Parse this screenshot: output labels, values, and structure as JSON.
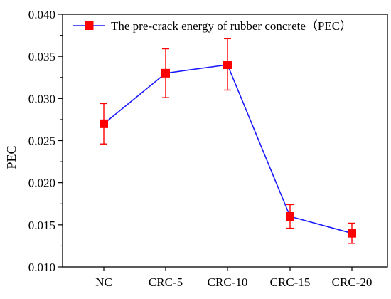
{
  "chart_data": {
    "type": "line",
    "title": "",
    "xlabel": "",
    "ylabel": "PEC",
    "categories": [
      "NC",
      "CRC-5",
      "CRC-10",
      "CRC-15",
      "CRC-20"
    ],
    "series": [
      {
        "name": "The pre-crack energy of rubber concrete（PEC）",
        "values": [
          0.027,
          0.033,
          0.034,
          0.016,
          0.014
        ],
        "error_upper": [
          0.0294,
          0.0359,
          0.0371,
          0.0174,
          0.0152
        ],
        "error_lower": [
          0.0246,
          0.0301,
          0.031,
          0.0146,
          0.0128
        ],
        "color": "#1a1aff",
        "marker_color": "#ff0000",
        "marker": "square"
      }
    ],
    "ylim": [
      0.01,
      0.04
    ],
    "yticks": [
      "0.010",
      "0.015",
      "0.020",
      "0.025",
      "0.030",
      "0.035",
      "0.040"
    ],
    "grid": false,
    "legend_position": "top"
  }
}
